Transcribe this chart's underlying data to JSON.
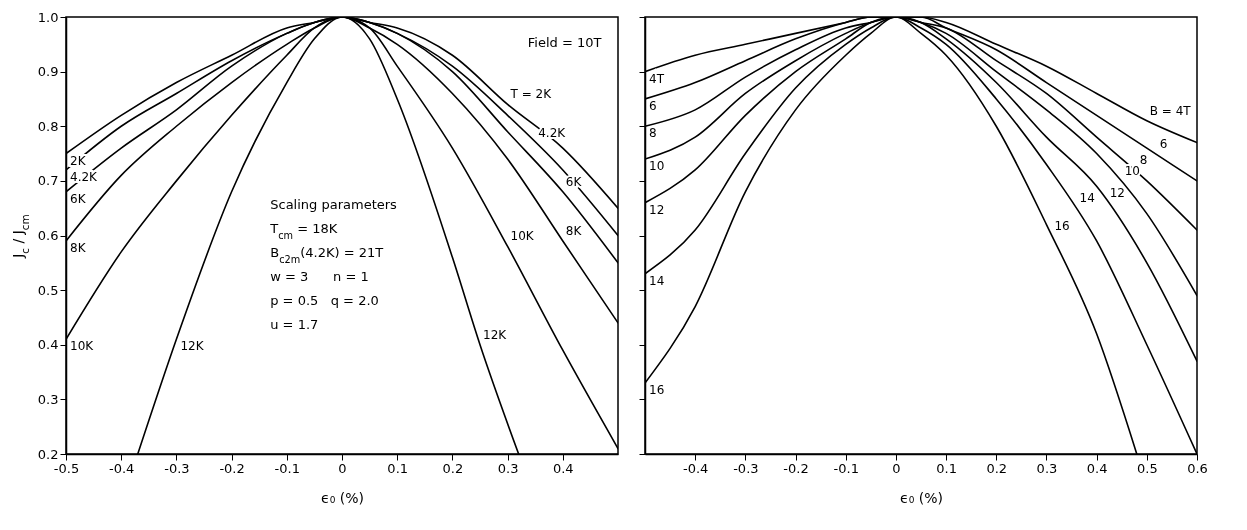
{
  "chart_data": [
    {
      "type": "line",
      "xlabel": "ϵ₀ (%)",
      "ylabel": "J$_{c}$ / J$_{cm}$",
      "x": [
        -0.5,
        -0.4,
        -0.3,
        -0.2,
        -0.1,
        -0.05,
        0,
        0.05,
        0.1,
        0.2,
        0.3,
        0.4,
        0.5
      ],
      "series": [
        {
          "name": "2K",
          "color": "#000000",
          "values": [
            0.75,
            0.82,
            0.88,
            0.93,
            0.98,
            0.99,
            1.0,
            0.99,
            0.98,
            0.93,
            0.84,
            0.76,
            0.65
          ]
        },
        {
          "name": "4.2K",
          "color": "#000000",
          "values": [
            0.72,
            0.8,
            0.86,
            0.92,
            0.97,
            0.99,
            1.0,
            0.99,
            0.97,
            0.91,
            0.82,
            0.72,
            0.6
          ]
        },
        {
          "name": "6K",
          "color": "#000000",
          "values": [
            0.68,
            0.76,
            0.83,
            0.91,
            0.97,
            0.99,
            1.0,
            0.99,
            0.97,
            0.9,
            0.79,
            0.68,
            0.55
          ]
        },
        {
          "name": "8K",
          "color": "#000000",
          "values": [
            0.59,
            0.71,
            0.8,
            0.88,
            0.95,
            0.98,
            1.0,
            0.98,
            0.95,
            0.86,
            0.74,
            0.59,
            0.44
          ]
        },
        {
          "name": "10K",
          "color": "#000000",
          "values": [
            0.41,
            0.57,
            0.7,
            0.82,
            0.93,
            0.98,
            1.0,
            0.98,
            0.91,
            0.76,
            0.58,
            0.39,
            0.21
          ]
        },
        {
          "name": "12K",
          "color": "#000000",
          "x": [
            -0.37,
            -0.3,
            -0.2,
            -0.1,
            -0.05,
            0,
            0.05,
            0.1,
            0.2,
            0.25,
            0.32
          ],
          "values": [
            0.2,
            0.41,
            0.68,
            0.88,
            0.96,
            1.0,
            0.96,
            0.85,
            0.56,
            0.4,
            0.2
          ]
        }
      ],
      "xlim": [
        -0.5,
        0.5
      ],
      "ylim": [
        0.2,
        1.0
      ],
      "xticks": [
        -0.5,
        -0.4,
        -0.3,
        -0.2,
        -0.1,
        0,
        0.1,
        0.2,
        0.3,
        0.4
      ],
      "yticks": [
        0.2,
        0.3,
        0.4,
        0.5,
        0.6,
        0.7,
        0.8,
        0.9,
        {
          "value": 1.0,
          "label": "1.0"
        }
      ],
      "marker": "none",
      "line_style": "solid",
      "annotations": [
        "Field = 10T",
        "Scaling parameters",
        "T$_{cm}$ = 18K",
        "B$_{c2m}$(4.2K) = 21T",
        "w = 3      n = 1",
        "p = 0.5   q = 2.0",
        "u = 1.7",
        {
          "text": "T = 2K",
          "x": 0.3,
          "y": 0.84
        },
        {
          "text": "4.2K",
          "x": 0.35,
          "y": 0.77
        },
        {
          "text": "6K",
          "x": 0.4,
          "y": 0.68
        },
        {
          "text": "8K",
          "x": 0.4,
          "y": 0.59
        },
        {
          "text": "10K",
          "x": 0.3,
          "y": 0.58
        },
        {
          "text": "12K",
          "x": 0.25,
          "y": 0.4
        }
      ]
    },
    {
      "type": "line",
      "xlabel": "ϵ₀ (%)",
      "x": [
        -0.5,
        -0.4,
        -0.3,
        -0.2,
        -0.1,
        -0.05,
        0,
        0.05,
        0.1,
        0.2,
        0.3,
        0.4,
        0.5,
        0.6
      ],
      "series": [
        {
          "name": "4T",
          "color": "#000000",
          "values": [
            0.9,
            0.93,
            0.95,
            0.97,
            0.99,
            1.0,
            1.0,
            1.0,
            0.99,
            0.95,
            0.91,
            0.86,
            0.81,
            0.77
          ]
        },
        {
          "name": "6",
          "color": "#000000",
          "values": [
            0.85,
            0.88,
            0.92,
            0.96,
            0.99,
            1.0,
            1.0,
            1.0,
            0.98,
            0.94,
            0.88,
            0.82,
            0.76,
            0.7
          ]
        },
        {
          "name": "8",
          "color": "#000000",
          "values": [
            0.8,
            0.83,
            0.89,
            0.94,
            0.98,
            0.99,
            1.0,
            0.99,
            0.98,
            0.92,
            0.86,
            0.78,
            0.7,
            0.61
          ]
        },
        {
          "name": "10",
          "color": "#000000",
          "values": [
            0.74,
            0.78,
            0.86,
            0.92,
            0.97,
            0.99,
            1.0,
            0.99,
            0.97,
            0.9,
            0.83,
            0.75,
            0.64,
            0.49
          ]
        },
        {
          "name": "12",
          "color": "#000000",
          "values": [
            0.66,
            0.72,
            0.82,
            0.9,
            0.96,
            0.99,
            1.0,
            0.99,
            0.96,
            0.88,
            0.78,
            0.69,
            0.55,
            0.37
          ]
        },
        {
          "name": "14",
          "color": "#000000",
          "values": [
            0.53,
            0.61,
            0.75,
            0.87,
            0.95,
            0.98,
            1.0,
            0.98,
            0.95,
            0.85,
            0.73,
            0.59,
            0.4,
            0.2
          ]
        },
        {
          "name": "16",
          "color": "#000000",
          "x": [
            -0.5,
            -0.4,
            -0.3,
            -0.2,
            -0.1,
            -0.05,
            0,
            0.05,
            0.1,
            0.2,
            0.3,
            0.4,
            0.48
          ],
          "values": [
            0.33,
            0.47,
            0.68,
            0.83,
            0.93,
            0.97,
            1.0,
            0.97,
            0.93,
            0.8,
            0.62,
            0.42,
            0.2
          ]
        }
      ],
      "xlim": [
        -0.5,
        0.6
      ],
      "ylim": [
        0.2,
        1.0
      ],
      "xticks": [
        -0.4,
        -0.3,
        -0.2,
        -0.1,
        0,
        0.1,
        0.2,
        0.3,
        0.4,
        0.5,
        0.6
      ],
      "yticks": [
        0.2,
        0.3,
        0.4,
        0.5,
        0.6,
        0.7,
        0.8,
        0.9,
        1.0
      ],
      "tick_labels": "x",
      "marker": "none",
      "line_style": "solid",
      "annotations": [
        {
          "text": "B = 4T",
          "x": 0.5,
          "y": 0.81
        },
        {
          "text": "6",
          "x": 0.52,
          "y": 0.75
        },
        {
          "text": "8",
          "x": 0.48,
          "y": 0.72
        },
        {
          "text": "10",
          "x": 0.45,
          "y": 0.7
        },
        {
          "text": "12",
          "x": 0.42,
          "y": 0.66
        },
        {
          "text": "14",
          "x": 0.36,
          "y": 0.65
        },
        {
          "text": "16",
          "x": 0.31,
          "y": 0.6
        }
      ]
    }
  ]
}
